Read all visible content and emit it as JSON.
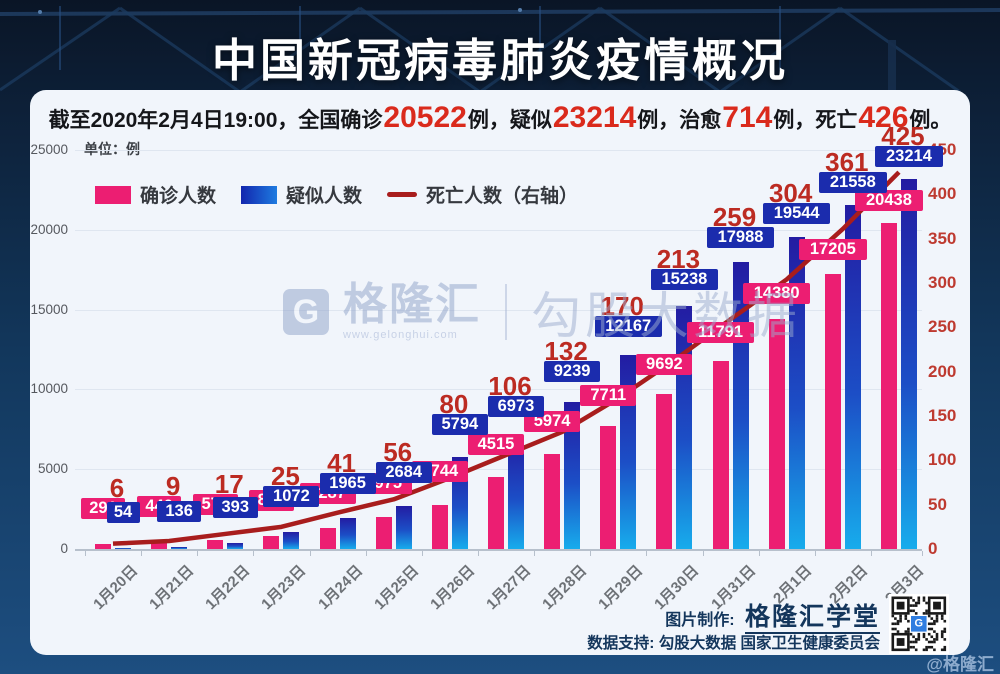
{
  "header": {
    "title": "中国新冠病毒肺炎疫情概况",
    "subtitle_segments": [
      {
        "text": "截至2020年2月4日19:00，全国确诊",
        "em": false
      },
      {
        "text": "20522",
        "em": true
      },
      {
        "text": "例，疑似",
        "em": false
      },
      {
        "text": "23214",
        "em": true
      },
      {
        "text": "例，治愈",
        "em": false
      },
      {
        "text": "714",
        "em": true
      },
      {
        "text": "例，死亡",
        "em": false
      },
      {
        "text": "426",
        "em": true
      },
      {
        "text": "例。",
        "em": false
      }
    ]
  },
  "chart_data": {
    "type": "bar",
    "unit_label": "单位：例",
    "legend": [
      "确诊人数",
      "疑似人数",
      "死亡人数（右轴）"
    ],
    "categories": [
      "1月20日",
      "1月21日",
      "1月22日",
      "1月23日",
      "1月24日",
      "1月25日",
      "1月26日",
      "1月27日",
      "1月28日",
      "1月29日",
      "1月30日",
      "1月31日",
      "2月1日",
      "2月2日",
      "2月3日"
    ],
    "series": [
      {
        "name": "确诊人数",
        "type": "bar",
        "axis": "left",
        "color": "#EC1E72",
        "values": [
          291,
          440,
          571,
          830,
          1287,
          1975,
          2744,
          4515,
          5974,
          7711,
          9692,
          11791,
          14380,
          17205,
          20438
        ]
      },
      {
        "name": "疑似人数",
        "type": "bar",
        "axis": "left",
        "color": "#1B2CAD",
        "values": [
          54,
          136,
          393,
          1072,
          1965,
          2684,
          5794,
          6973,
          9239,
          12167,
          15238,
          17988,
          19544,
          21558,
          23214
        ]
      },
      {
        "name": "死亡人数（右轴）",
        "type": "line",
        "axis": "right",
        "color": "#A81D1D",
        "values": [
          6,
          9,
          17,
          25,
          41,
          56,
          80,
          106,
          132,
          170,
          213,
          259,
          304,
          361,
          425
        ]
      }
    ],
    "left_axis": {
      "ticks": [
        25000,
        20000,
        15000,
        10000,
        5000,
        0
      ],
      "max": 25000
    },
    "right_axis": {
      "ticks": [
        450,
        400,
        350,
        300,
        250,
        200,
        150,
        100,
        50,
        0
      ],
      "max": 450
    },
    "grid": true,
    "legend_position": "top-left"
  },
  "watermark": {
    "logo_letter": "G",
    "brand": "格隆汇",
    "url": "www.gelonghui.com",
    "right_text": "勾股大数据"
  },
  "footer": {
    "maker_label": "图片制作:",
    "maker_name": "格隆汇学堂",
    "support_label": "数据支持:",
    "support_text": "勾股大数据 国家卫生健康委员会"
  },
  "corner_credit": "@格隆汇"
}
